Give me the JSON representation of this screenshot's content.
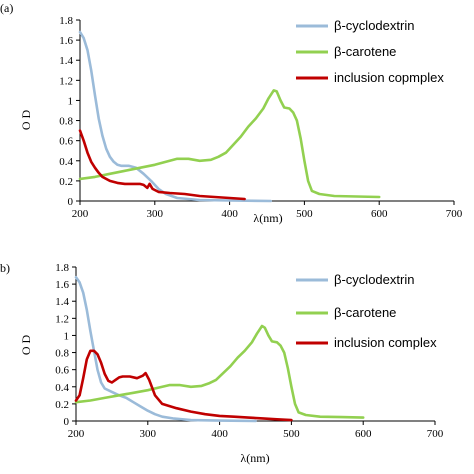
{
  "chart_data": [
    {
      "type": "line",
      "panel_label": "(a)",
      "xlabel": "λ(nm)",
      "ylabel": "O D",
      "xlim": [
        200,
        700
      ],
      "ylim": [
        0,
        1.8
      ],
      "x_ticks": [
        "200",
        "300",
        "400",
        "500",
        "600",
        "700"
      ],
      "y_ticks": [
        "0",
        "0.2",
        "0.4",
        "0.6",
        "0.8",
        "1",
        "1.2",
        "1.4",
        "1.6",
        "1.8"
      ],
      "grid": false,
      "legend_position": "top-right",
      "series": [
        {
          "name": "β-cyclodextrin",
          "color": "#9bbbd9",
          "points": [
            [
              200,
              1.68
            ],
            [
              205,
              1.62
            ],
            [
              210,
              1.5
            ],
            [
              215,
              1.3
            ],
            [
              220,
              1.05
            ],
            [
              225,
              0.82
            ],
            [
              230,
              0.65
            ],
            [
              235,
              0.52
            ],
            [
              240,
              0.44
            ],
            [
              245,
              0.39
            ],
            [
              250,
              0.36
            ],
            [
              255,
              0.35
            ],
            [
              265,
              0.35
            ],
            [
              275,
              0.33
            ],
            [
              285,
              0.27
            ],
            [
              295,
              0.2
            ],
            [
              305,
              0.12
            ],
            [
              315,
              0.07
            ],
            [
              330,
              0.03
            ],
            [
              360,
              0.01
            ],
            [
              400,
              0.005
            ],
            [
              455,
              0.0
            ]
          ]
        },
        {
          "name": "β-carotene",
          "color": "#92d050",
          "points": [
            [
              200,
              0.22
            ],
            [
              220,
              0.24
            ],
            [
              240,
              0.27
            ],
            [
              260,
              0.3
            ],
            [
              280,
              0.33
            ],
            [
              300,
              0.36
            ],
            [
              315,
              0.39
            ],
            [
              330,
              0.42
            ],
            [
              345,
              0.42
            ],
            [
              360,
              0.4
            ],
            [
              375,
              0.41
            ],
            [
              385,
              0.44
            ],
            [
              395,
              0.48
            ],
            [
              405,
              0.56
            ],
            [
              415,
              0.64
            ],
            [
              425,
              0.74
            ],
            [
              435,
              0.82
            ],
            [
              445,
              0.92
            ],
            [
              452,
              1.02
            ],
            [
              459,
              1.1
            ],
            [
              463,
              1.09
            ],
            [
              468,
              1.0
            ],
            [
              473,
              0.93
            ],
            [
              480,
              0.92
            ],
            [
              485,
              0.88
            ],
            [
              490,
              0.8
            ],
            [
              495,
              0.62
            ],
            [
              500,
              0.4
            ],
            [
              505,
              0.2
            ],
            [
              510,
              0.1
            ],
            [
              520,
              0.07
            ],
            [
              540,
              0.05
            ],
            [
              570,
              0.045
            ],
            [
              600,
              0.04
            ]
          ]
        },
        {
          "name": "inclusion copmplex",
          "color": "#c00000",
          "points": [
            [
              200,
              0.7
            ],
            [
              205,
              0.6
            ],
            [
              210,
              0.48
            ],
            [
              215,
              0.39
            ],
            [
              220,
              0.33
            ],
            [
              225,
              0.28
            ],
            [
              230,
              0.24
            ],
            [
              240,
              0.2
            ],
            [
              250,
              0.18
            ],
            [
              260,
              0.17
            ],
            [
              270,
              0.17
            ],
            [
              280,
              0.17
            ],
            [
              285,
              0.16
            ],
            [
              290,
              0.13
            ],
            [
              293,
              0.17
            ],
            [
              297,
              0.12
            ],
            [
              305,
              0.09
            ],
            [
              320,
              0.08
            ],
            [
              340,
              0.07
            ],
            [
              360,
              0.05
            ],
            [
              380,
              0.04
            ],
            [
              400,
              0.03
            ],
            [
              420,
              0.02
            ]
          ]
        }
      ]
    },
    {
      "type": "line",
      "panel_label": "b)",
      "xlabel": "λ(nm)",
      "ylabel": "O D",
      "xlim": [
        200,
        700
      ],
      "ylim": [
        0,
        1.8
      ],
      "x_ticks": [
        "200",
        "300",
        "400",
        "500",
        "600",
        "700"
      ],
      "y_ticks": [
        "0",
        "0.2",
        "0.4",
        "0.6",
        "0.8",
        "1",
        "1.2",
        "1.4",
        "1.6",
        "1.8"
      ],
      "grid": false,
      "legend_position": "top-right",
      "series": [
        {
          "name": "β-cyclodextrin",
          "color": "#9bbbd9",
          "points": [
            [
              200,
              1.68
            ],
            [
              205,
              1.62
            ],
            [
              210,
              1.5
            ],
            [
              215,
              1.3
            ],
            [
              220,
              1.05
            ],
            [
              225,
              0.82
            ],
            [
              230,
              0.6
            ],
            [
              235,
              0.45
            ],
            [
              240,
              0.38
            ],
            [
              250,
              0.34
            ],
            [
              260,
              0.3
            ],
            [
              270,
              0.27
            ],
            [
              280,
              0.22
            ],
            [
              290,
              0.17
            ],
            [
              300,
              0.12
            ],
            [
              310,
              0.08
            ],
            [
              320,
              0.05
            ],
            [
              335,
              0.03
            ],
            [
              360,
              0.01
            ],
            [
              400,
              0.005
            ],
            [
              450,
              0.0
            ]
          ]
        },
        {
          "name": "β-carotene",
          "color": "#92d050",
          "points": [
            [
              200,
              0.22
            ],
            [
              220,
              0.24
            ],
            [
              240,
              0.27
            ],
            [
              260,
              0.3
            ],
            [
              280,
              0.33
            ],
            [
              300,
              0.36
            ],
            [
              315,
              0.39
            ],
            [
              330,
              0.42
            ],
            [
              345,
              0.42
            ],
            [
              360,
              0.4
            ],
            [
              375,
              0.41
            ],
            [
              385,
              0.44
            ],
            [
              395,
              0.48
            ],
            [
              405,
              0.56
            ],
            [
              415,
              0.64
            ],
            [
              425,
              0.74
            ],
            [
              435,
              0.82
            ],
            [
              445,
              0.92
            ],
            [
              452,
              1.02
            ],
            [
              459,
              1.11
            ],
            [
              463,
              1.09
            ],
            [
              468,
              1.0
            ],
            [
              473,
              0.93
            ],
            [
              480,
              0.92
            ],
            [
              485,
              0.88
            ],
            [
              490,
              0.8
            ],
            [
              495,
              0.62
            ],
            [
              500,
              0.4
            ],
            [
              505,
              0.2
            ],
            [
              510,
              0.1
            ],
            [
              520,
              0.07
            ],
            [
              540,
              0.05
            ],
            [
              570,
              0.045
            ],
            [
              600,
              0.04
            ]
          ]
        },
        {
          "name": "inclusion complex",
          "color": "#c00000",
          "points": [
            [
              200,
              0.24
            ],
            [
              205,
              0.3
            ],
            [
              210,
              0.5
            ],
            [
              215,
              0.72
            ],
            [
              220,
              0.82
            ],
            [
              225,
              0.82
            ],
            [
              230,
              0.78
            ],
            [
              235,
              0.68
            ],
            [
              240,
              0.55
            ],
            [
              245,
              0.47
            ],
            [
              250,
              0.45
            ],
            [
              255,
              0.48
            ],
            [
              260,
              0.51
            ],
            [
              265,
              0.52
            ],
            [
              275,
              0.52
            ],
            [
              285,
              0.5
            ],
            [
              293,
              0.53
            ],
            [
              297,
              0.56
            ],
            [
              302,
              0.48
            ],
            [
              310,
              0.3
            ],
            [
              320,
              0.2
            ],
            [
              340,
              0.15
            ],
            [
              360,
              0.11
            ],
            [
              380,
              0.08
            ],
            [
              400,
              0.06
            ],
            [
              420,
              0.05
            ],
            [
              440,
              0.04
            ],
            [
              460,
              0.03
            ],
            [
              480,
              0.02
            ],
            [
              500,
              0.01
            ]
          ]
        }
      ]
    }
  ]
}
